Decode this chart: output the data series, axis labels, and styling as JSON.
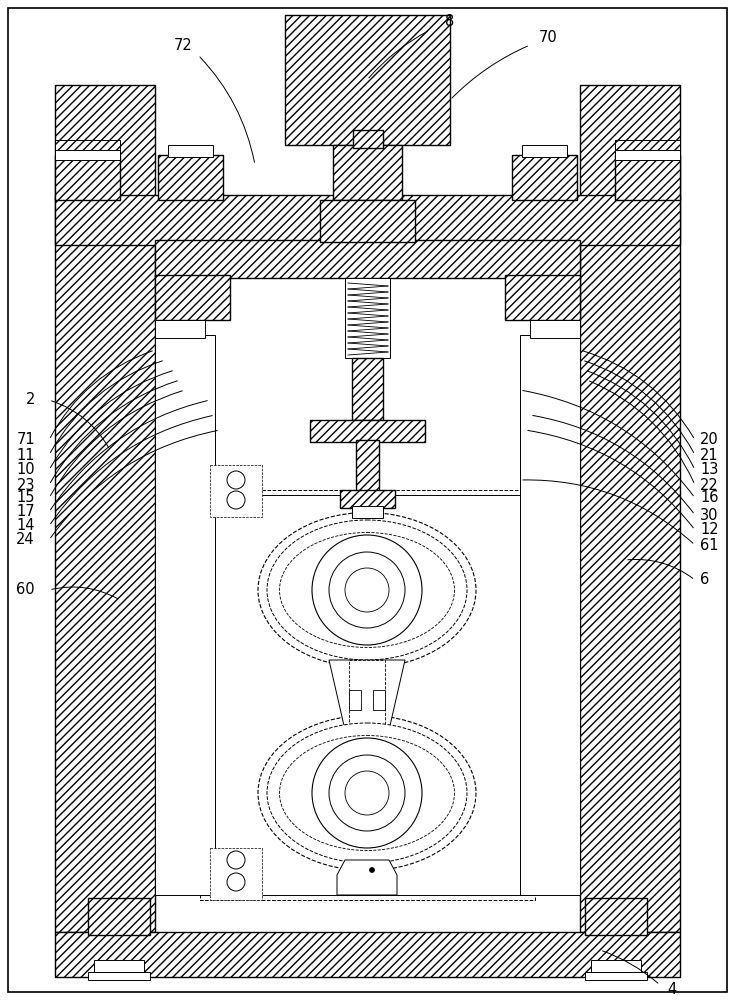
{
  "bg_color": "#ffffff",
  "line_color": "#000000",
  "fig_width": 7.35,
  "fig_height": 10.0,
  "dpi": 100
}
